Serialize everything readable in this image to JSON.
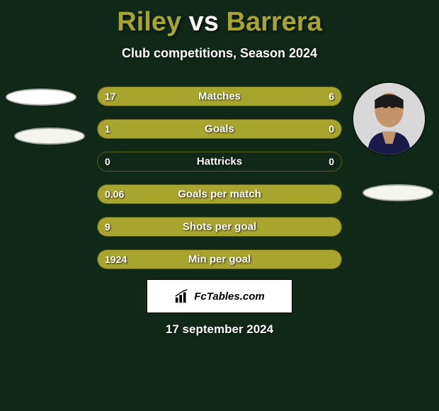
{
  "title": {
    "player1": "Riley",
    "vs": "vs",
    "player2": "Barrera"
  },
  "subtitle": "Club competitions, Season 2024",
  "colors": {
    "background": "#0f2818",
    "bar_fill": "#a8a52e",
    "bar_border": "#5a5a1a",
    "text": "#ffffff",
    "chip_bg": "#f5f5f0",
    "avatar_bg": "#e8e8e8"
  },
  "bars": [
    {
      "label": "Matches",
      "left": "17",
      "right": "6",
      "left_pct": 70,
      "right_pct": 30
    },
    {
      "label": "Goals",
      "left": "1",
      "right": "0",
      "left_pct": 77,
      "right_pct": 23
    },
    {
      "label": "Hattricks",
      "left": "0",
      "right": "0",
      "left_pct": 0,
      "right_pct": 0
    },
    {
      "label": "Goals per match",
      "left": "0.06",
      "right": "",
      "left_pct": 100,
      "right_pct": 0
    },
    {
      "label": "Shots per goal",
      "left": "9",
      "right": "",
      "left_pct": 100,
      "right_pct": 0
    },
    {
      "label": "Min per goal",
      "left": "1924",
      "right": "",
      "left_pct": 100,
      "right_pct": 0
    }
  ],
  "footer_brand": "FcTables.com",
  "date": "17 september 2024"
}
